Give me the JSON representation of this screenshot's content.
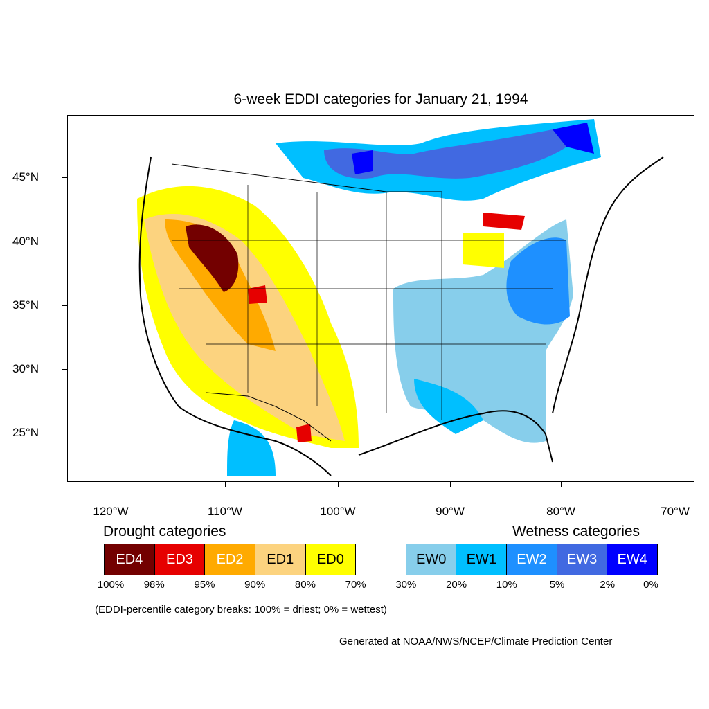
{
  "title": "6-week EDDI categories for January 21, 1994",
  "map": {
    "lat_labels": [
      "45°N",
      "40°N",
      "35°N",
      "30°N",
      "25°N"
    ],
    "lon_labels": [
      "120°W",
      "110°W",
      "100°W",
      "90°W",
      "80°W",
      "70°W"
    ]
  },
  "legend": {
    "drought_title": "Drought categories",
    "wetness_title": "Wetness categories",
    "categories": [
      {
        "label": "ED4",
        "color": "#730000",
        "text_color": "#ffffff"
      },
      {
        "label": "ED3",
        "color": "#e60000",
        "text_color": "#ffffff"
      },
      {
        "label": "ED2",
        "color": "#ffaa00",
        "text_color": "#ffffff"
      },
      {
        "label": "ED1",
        "color": "#fcd37f",
        "text_color": "#000000"
      },
      {
        "label": "ED0",
        "color": "#ffff00",
        "text_color": "#000000"
      },
      {
        "label": "",
        "color": "#ffffff",
        "text_color": "#000000"
      },
      {
        "label": "EW0",
        "color": "#87ceeb",
        "text_color": "#000000"
      },
      {
        "label": "EW1",
        "color": "#00bfff",
        "text_color": "#000000"
      },
      {
        "label": "EW2",
        "color": "#1e90ff",
        "text_color": "#ffffff"
      },
      {
        "label": "EW3",
        "color": "#4169e1",
        "text_color": "#ffffff"
      },
      {
        "label": "EW4",
        "color": "#0000ff",
        "text_color": "#ffffff"
      }
    ],
    "percentiles": [
      "100%",
      "98%",
      "95%",
      "90%",
      "80%",
      "70%",
      "30%",
      "20%",
      "10%",
      "5%",
      "2%",
      "0%"
    ]
  },
  "note": "(EDDI-percentile category breaks: 100% = driest; 0% = wettest)",
  "credit": "Generated at NOAA/NWS/NCEP/Climate Prediction Center"
}
